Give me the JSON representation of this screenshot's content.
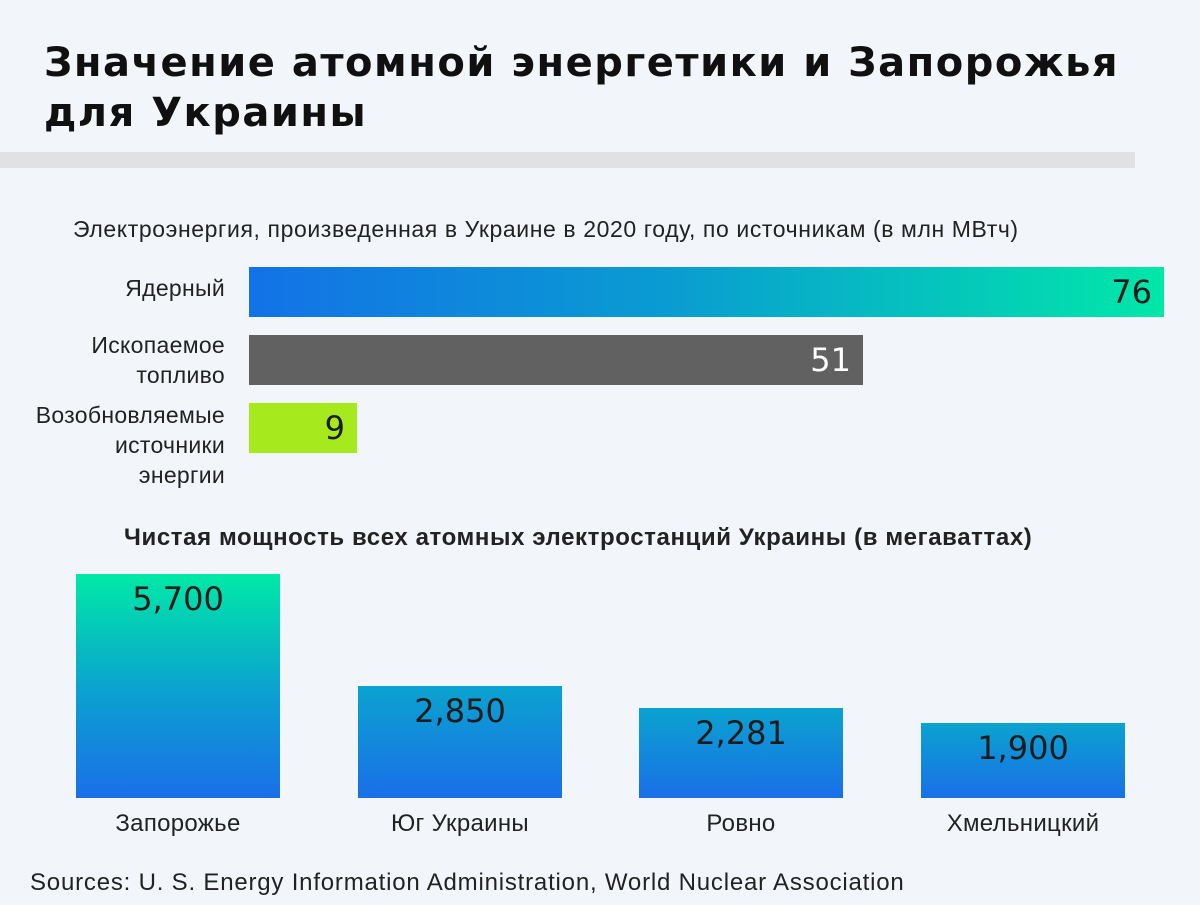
{
  "title": "Значение атомной энергетики и Запорожья для Украины",
  "source": "Sources: U. S. Energy Information Administration, World Nuclear Association",
  "chart_data": [
    {
      "type": "bar",
      "orientation": "horizontal",
      "title": "Электроэнергия, произведенная в Украине в 2020 году, по источникам (в млн МВтч)",
      "categories": [
        "Ядерный",
        "Ископаемое топливо",
        "Возобновляемые источники энергии"
      ],
      "label_lines": [
        [
          "Ядерный"
        ],
        [
          "Ископаемое",
          "топливо"
        ],
        [
          "Возобновляемые",
          "источники",
          "энергии"
        ]
      ],
      "values": [
        76,
        51,
        9
      ],
      "value_labels": [
        "76",
        "51",
        "9"
      ],
      "colors": [
        "gradient:#1372e6-#00e8a8",
        "#616161",
        "#a6ea1e"
      ]
    },
    {
      "type": "bar",
      "orientation": "vertical",
      "title": "Чистая мощность всех атомных электростанций Украины (в мегаваттах)",
      "categories": [
        "Запорожье",
        "Юг Украины",
        "Ровно",
        "Хмельницкий"
      ],
      "values": [
        5700,
        2850,
        2281,
        1900
      ],
      "value_labels": [
        "5,700",
        "2,850",
        "2,281",
        "1,900"
      ],
      "colors": [
        "gradient:#1a6fe8-#00e9a6"
      ]
    }
  ]
}
